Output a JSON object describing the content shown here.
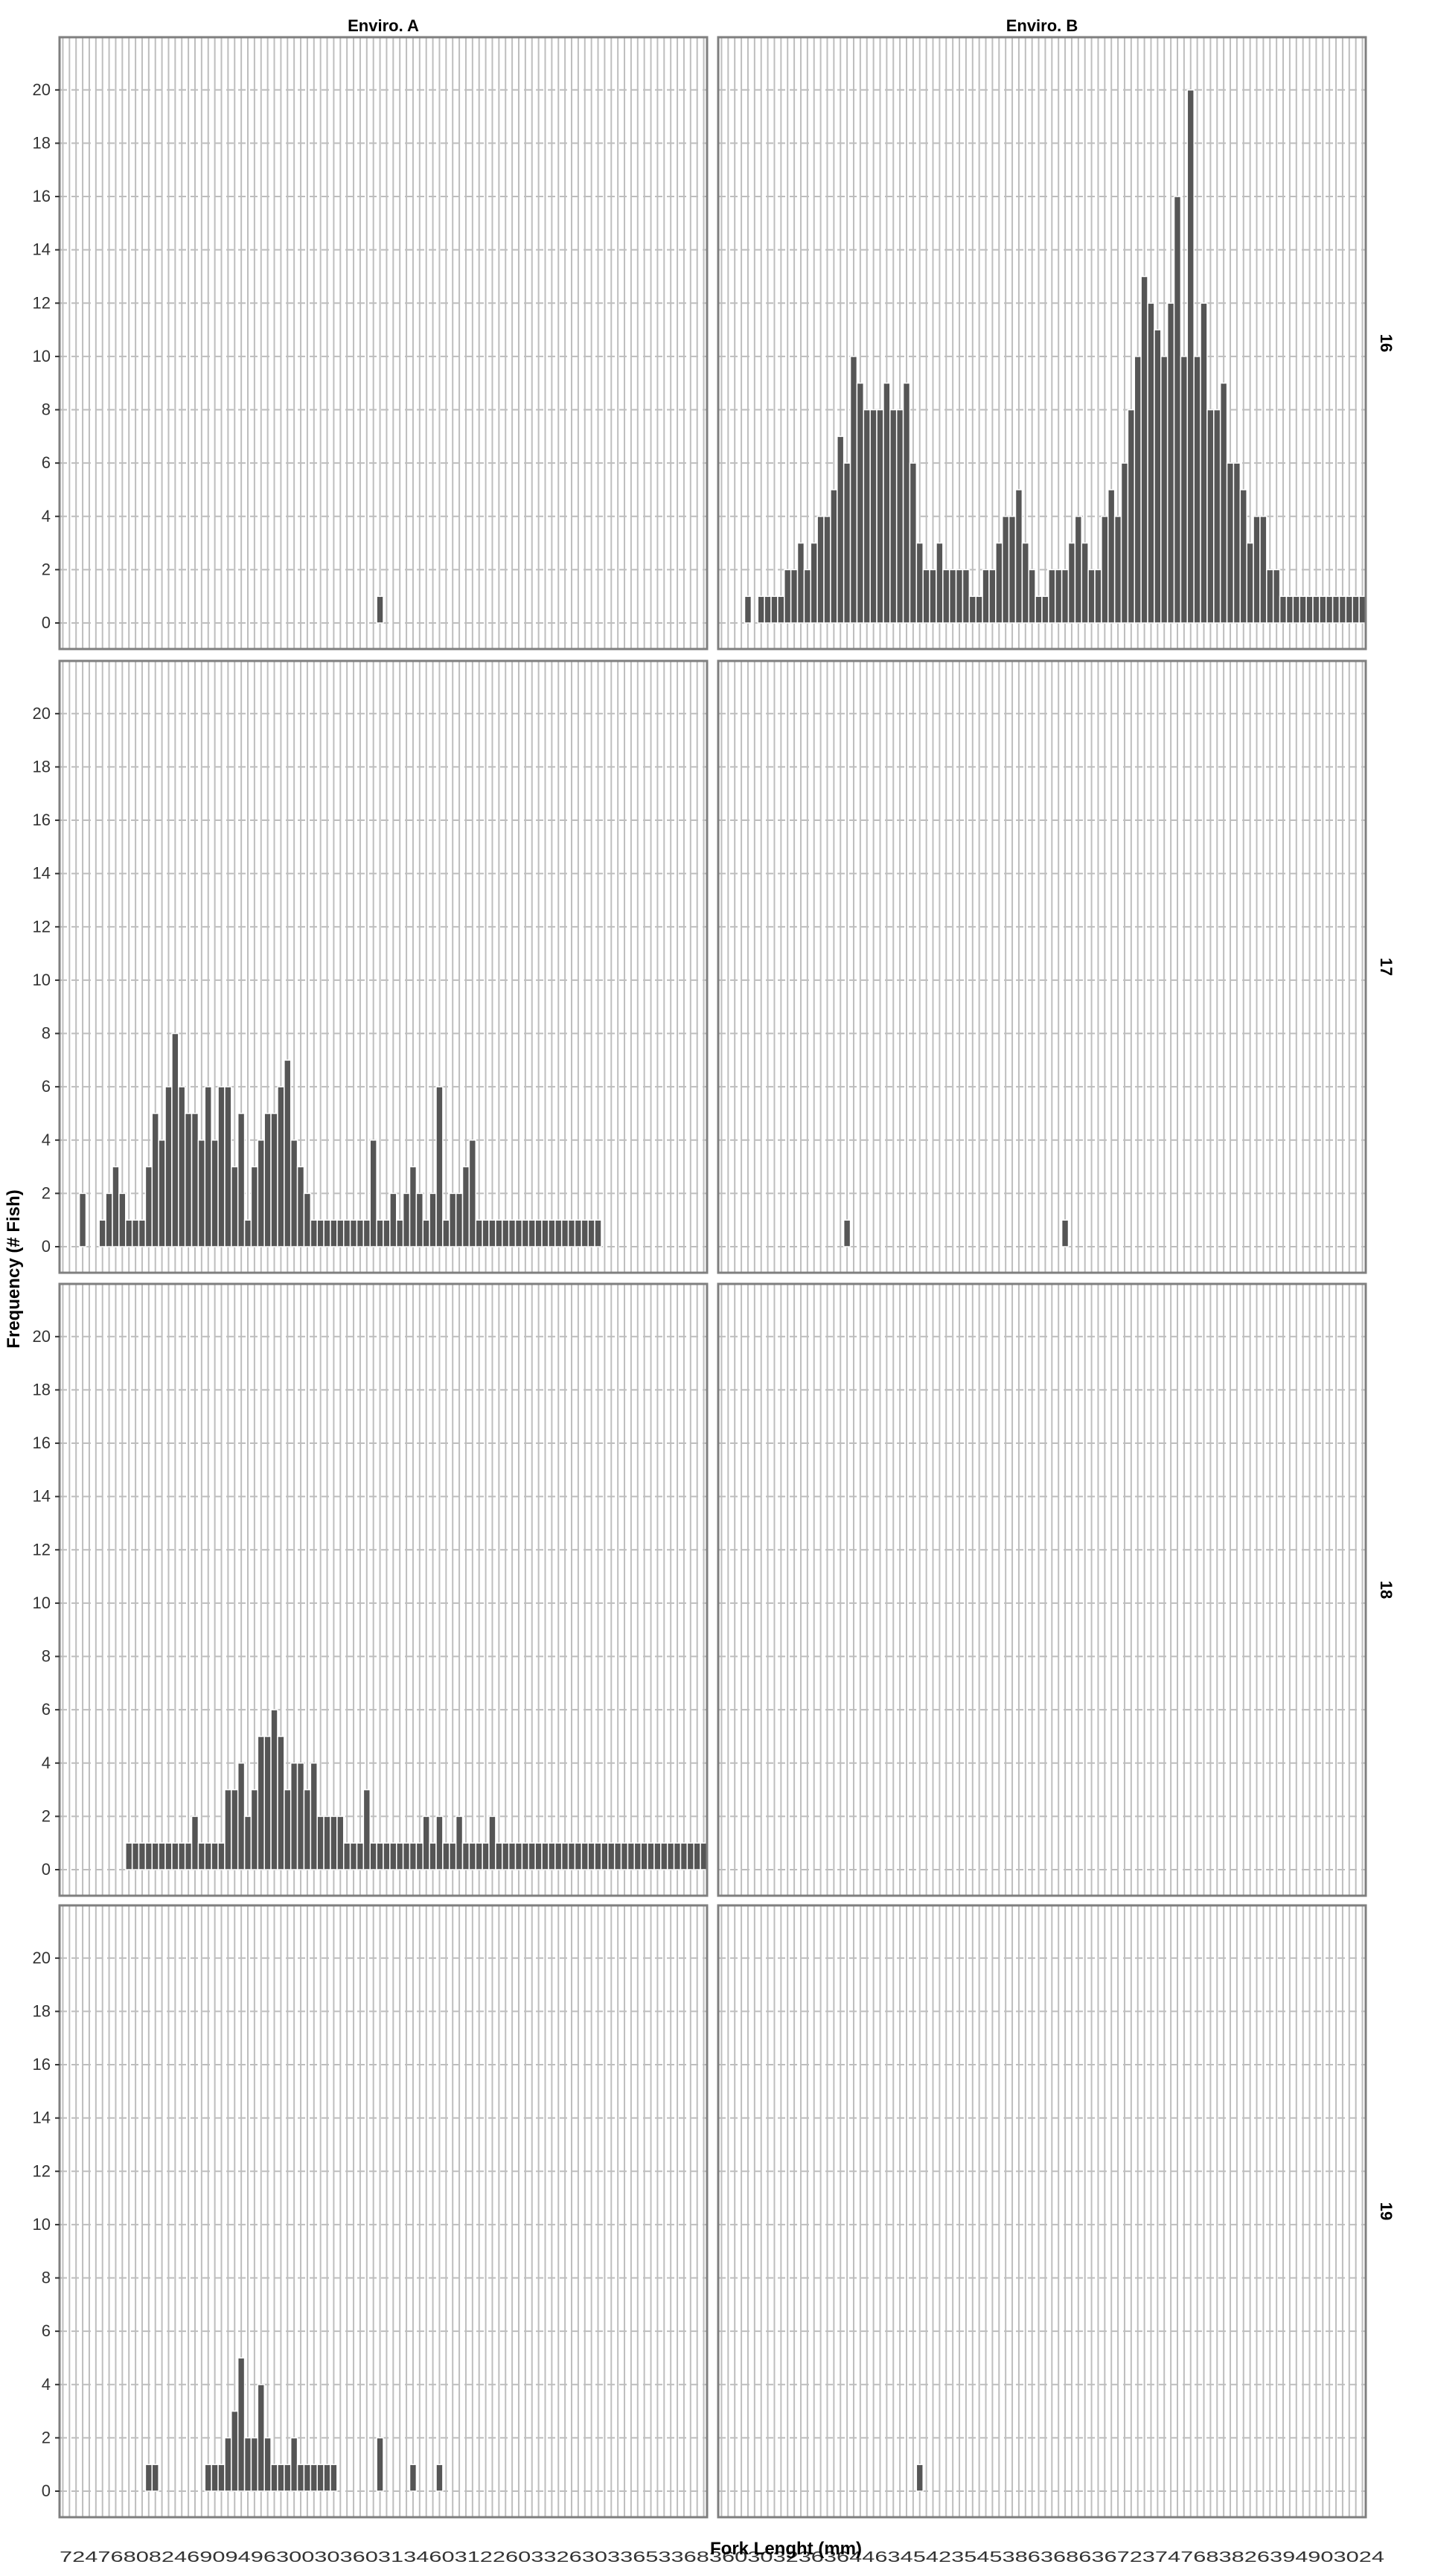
{
  "chart_data": {
    "type": "bar",
    "xlabel": "Fork Lenght (mm)",
    "ylabel": "Frequency (# Fish)",
    "ylim": [
      0,
      21
    ],
    "y_ticks": [
      "0",
      "2",
      "4",
      "6",
      "8",
      "10",
      "12",
      "14",
      "16",
      "18",
      "20"
    ],
    "x_tick_label_row": "72476808246909496300303603134603122603326303365336836030323636446345423545386368636723747683826394903024",
    "grid": true,
    "colors": {
      "bar": "#555555",
      "bar_edge": "#ffffff",
      "grid": "#bebebe",
      "panel_border": "#7f7f7f",
      "text": "#000000"
    },
    "columns": [
      "Enviro. A",
      "Enviro. B"
    ],
    "rows": [
      "16",
      "17",
      "18",
      "19"
    ],
    "bins": 98,
    "panels": [
      {
        "column": "Enviro. A",
        "row": "16",
        "bars": [
          [
            48,
            1
          ]
        ]
      },
      {
        "column": "Enviro. B",
        "row": "16",
        "bars": [
          [
            4,
            1
          ],
          [
            6,
            1
          ],
          [
            7,
            1
          ],
          [
            8,
            1
          ],
          [
            9,
            1
          ],
          [
            10,
            2
          ],
          [
            11,
            2
          ],
          [
            12,
            3
          ],
          [
            13,
            2
          ],
          [
            14,
            3
          ],
          [
            15,
            4
          ],
          [
            16,
            4
          ],
          [
            17,
            5
          ],
          [
            18,
            7
          ],
          [
            19,
            6
          ],
          [
            20,
            10
          ],
          [
            21,
            9
          ],
          [
            22,
            8
          ],
          [
            23,
            8
          ],
          [
            24,
            8
          ],
          [
            25,
            9
          ],
          [
            26,
            8
          ],
          [
            27,
            8
          ],
          [
            28,
            9
          ],
          [
            29,
            6
          ],
          [
            30,
            3
          ],
          [
            31,
            2
          ],
          [
            32,
            2
          ],
          [
            33,
            3
          ],
          [
            34,
            2
          ],
          [
            35,
            2
          ],
          [
            36,
            2
          ],
          [
            37,
            2
          ],
          [
            38,
            1
          ],
          [
            39,
            1
          ],
          [
            40,
            2
          ],
          [
            41,
            2
          ],
          [
            42,
            3
          ],
          [
            43,
            4
          ],
          [
            44,
            4
          ],
          [
            45,
            5
          ],
          [
            46,
            3
          ],
          [
            47,
            2
          ],
          [
            48,
            1
          ],
          [
            49,
            1
          ],
          [
            50,
            2
          ],
          [
            51,
            2
          ],
          [
            52,
            2
          ],
          [
            53,
            3
          ],
          [
            54,
            4
          ],
          [
            55,
            3
          ],
          [
            56,
            2
          ],
          [
            57,
            2
          ],
          [
            58,
            4
          ],
          [
            59,
            5
          ],
          [
            60,
            4
          ],
          [
            61,
            6
          ],
          [
            62,
            8
          ],
          [
            63,
            10
          ],
          [
            64,
            13
          ],
          [
            65,
            12
          ],
          [
            66,
            11
          ],
          [
            67,
            10
          ],
          [
            68,
            12
          ],
          [
            69,
            16
          ],
          [
            70,
            10
          ],
          [
            71,
            20
          ],
          [
            72,
            10
          ],
          [
            73,
            12
          ],
          [
            74,
            8
          ],
          [
            75,
            8
          ],
          [
            76,
            9
          ],
          [
            77,
            6
          ],
          [
            78,
            6
          ],
          [
            79,
            5
          ],
          [
            80,
            3
          ],
          [
            81,
            4
          ],
          [
            82,
            4
          ],
          [
            83,
            2
          ],
          [
            84,
            2
          ],
          [
            85,
            1
          ],
          [
            86,
            1
          ],
          [
            87,
            1
          ],
          [
            88,
            1
          ],
          [
            89,
            1
          ],
          [
            90,
            1
          ],
          [
            91,
            1
          ],
          [
            92,
            1
          ],
          [
            93,
            1
          ],
          [
            94,
            1
          ],
          [
            95,
            1
          ],
          [
            96,
            1
          ],
          [
            97,
            1
          ]
        ]
      },
      {
        "column": "Enviro. A",
        "row": "17",
        "bars": [
          [
            3,
            2
          ],
          [
            6,
            1
          ],
          [
            7,
            2
          ],
          [
            8,
            3
          ],
          [
            9,
            2
          ],
          [
            10,
            1
          ],
          [
            11,
            1
          ],
          [
            12,
            1
          ],
          [
            13,
            3
          ],
          [
            14,
            5
          ],
          [
            15,
            4
          ],
          [
            16,
            6
          ],
          [
            17,
            8
          ],
          [
            18,
            6
          ],
          [
            19,
            5
          ],
          [
            20,
            5
          ],
          [
            21,
            4
          ],
          [
            22,
            6
          ],
          [
            23,
            4
          ],
          [
            24,
            6
          ],
          [
            25,
            6
          ],
          [
            26,
            3
          ],
          [
            27,
            5
          ],
          [
            28,
            1
          ],
          [
            29,
            3
          ],
          [
            30,
            4
          ],
          [
            31,
            5
          ],
          [
            32,
            5
          ],
          [
            33,
            6
          ],
          [
            34,
            7
          ],
          [
            35,
            4
          ],
          [
            36,
            3
          ],
          [
            37,
            2
          ],
          [
            38,
            1
          ],
          [
            39,
            1
          ],
          [
            40,
            1
          ],
          [
            41,
            1
          ],
          [
            42,
            1
          ],
          [
            43,
            1
          ],
          [
            44,
            1
          ],
          [
            45,
            1
          ],
          [
            46,
            1
          ],
          [
            47,
            4
          ],
          [
            48,
            1
          ],
          [
            49,
            1
          ],
          [
            50,
            2
          ],
          [
            51,
            1
          ],
          [
            52,
            2
          ],
          [
            53,
            3
          ],
          [
            54,
            2
          ],
          [
            55,
            1
          ],
          [
            56,
            2
          ],
          [
            57,
            6
          ],
          [
            58,
            1
          ],
          [
            59,
            2
          ],
          [
            60,
            2
          ],
          [
            61,
            3
          ],
          [
            62,
            4
          ],
          [
            63,
            1
          ],
          [
            64,
            1
          ],
          [
            65,
            1
          ],
          [
            66,
            1
          ],
          [
            67,
            1
          ],
          [
            68,
            1
          ],
          [
            69,
            1
          ],
          [
            70,
            1
          ],
          [
            71,
            1
          ],
          [
            72,
            1
          ],
          [
            73,
            1
          ],
          [
            74,
            1
          ],
          [
            75,
            1
          ],
          [
            76,
            1
          ],
          [
            77,
            1
          ],
          [
            78,
            1
          ],
          [
            79,
            1
          ],
          [
            80,
            1
          ],
          [
            81,
            1
          ]
        ]
      },
      {
        "column": "Enviro. B",
        "row": "17",
        "bars": [
          [
            19,
            1
          ],
          [
            52,
            1
          ]
        ]
      },
      {
        "column": "Enviro. A",
        "row": "18",
        "bars": [
          [
            10,
            1
          ],
          [
            11,
            1
          ],
          [
            12,
            1
          ],
          [
            13,
            1
          ],
          [
            14,
            1
          ],
          [
            15,
            1
          ],
          [
            16,
            1
          ],
          [
            17,
            1
          ],
          [
            18,
            1
          ],
          [
            19,
            1
          ],
          [
            20,
            2
          ],
          [
            21,
            1
          ],
          [
            22,
            1
          ],
          [
            23,
            1
          ],
          [
            24,
            1
          ],
          [
            25,
            3
          ],
          [
            26,
            3
          ],
          [
            27,
            4
          ],
          [
            28,
            2
          ],
          [
            29,
            3
          ],
          [
            30,
            5
          ],
          [
            31,
            5
          ],
          [
            32,
            6
          ],
          [
            33,
            5
          ],
          [
            34,
            3
          ],
          [
            35,
            4
          ],
          [
            36,
            4
          ],
          [
            37,
            3
          ],
          [
            38,
            4
          ],
          [
            39,
            2
          ],
          [
            40,
            2
          ],
          [
            41,
            2
          ],
          [
            42,
            2
          ],
          [
            43,
            1
          ],
          [
            44,
            1
          ],
          [
            45,
            1
          ],
          [
            46,
            3
          ],
          [
            47,
            1
          ],
          [
            48,
            1
          ],
          [
            49,
            1
          ],
          [
            50,
            1
          ],
          [
            51,
            1
          ],
          [
            52,
            1
          ],
          [
            53,
            1
          ],
          [
            54,
            1
          ],
          [
            55,
            2
          ],
          [
            56,
            1
          ],
          [
            57,
            2
          ],
          [
            58,
            1
          ],
          [
            59,
            1
          ],
          [
            60,
            2
          ],
          [
            61,
            1
          ],
          [
            62,
            1
          ],
          [
            63,
            1
          ],
          [
            64,
            1
          ],
          [
            65,
            2
          ],
          [
            66,
            1
          ],
          [
            67,
            1
          ],
          [
            68,
            1
          ],
          [
            69,
            1
          ],
          [
            70,
            1
          ],
          [
            71,
            1
          ],
          [
            72,
            1
          ],
          [
            73,
            1
          ],
          [
            74,
            1
          ],
          [
            75,
            1
          ],
          [
            76,
            1
          ],
          [
            77,
            1
          ],
          [
            78,
            1
          ],
          [
            79,
            1
          ],
          [
            80,
            1
          ],
          [
            81,
            1
          ],
          [
            82,
            1
          ],
          [
            83,
            1
          ],
          [
            84,
            1
          ],
          [
            85,
            1
          ],
          [
            86,
            1
          ],
          [
            87,
            1
          ],
          [
            88,
            1
          ],
          [
            89,
            1
          ],
          [
            90,
            1
          ],
          [
            91,
            1
          ],
          [
            92,
            1
          ],
          [
            93,
            1
          ],
          [
            94,
            1
          ],
          [
            95,
            1
          ],
          [
            96,
            1
          ],
          [
            97,
            1
          ]
        ]
      },
      {
        "column": "Enviro. B",
        "row": "18",
        "bars": []
      },
      {
        "column": "Enviro. A",
        "row": "19",
        "bars": [
          [
            13,
            1
          ],
          [
            14,
            1
          ],
          [
            22,
            1
          ],
          [
            23,
            1
          ],
          [
            24,
            1
          ],
          [
            25,
            2
          ],
          [
            26,
            3
          ],
          [
            27,
            5
          ],
          [
            28,
            2
          ],
          [
            29,
            2
          ],
          [
            30,
            4
          ],
          [
            31,
            2
          ],
          [
            32,
            1
          ],
          [
            33,
            1
          ],
          [
            34,
            1
          ],
          [
            35,
            2
          ],
          [
            36,
            1
          ],
          [
            37,
            1
          ],
          [
            38,
            1
          ],
          [
            39,
            1
          ],
          [
            40,
            1
          ],
          [
            41,
            1
          ],
          [
            48,
            2
          ],
          [
            53,
            1
          ],
          [
            57,
            1
          ]
        ]
      },
      {
        "column": "Enviro. B",
        "row": "19",
        "bars": [
          [
            30,
            1
          ]
        ]
      }
    ]
  }
}
